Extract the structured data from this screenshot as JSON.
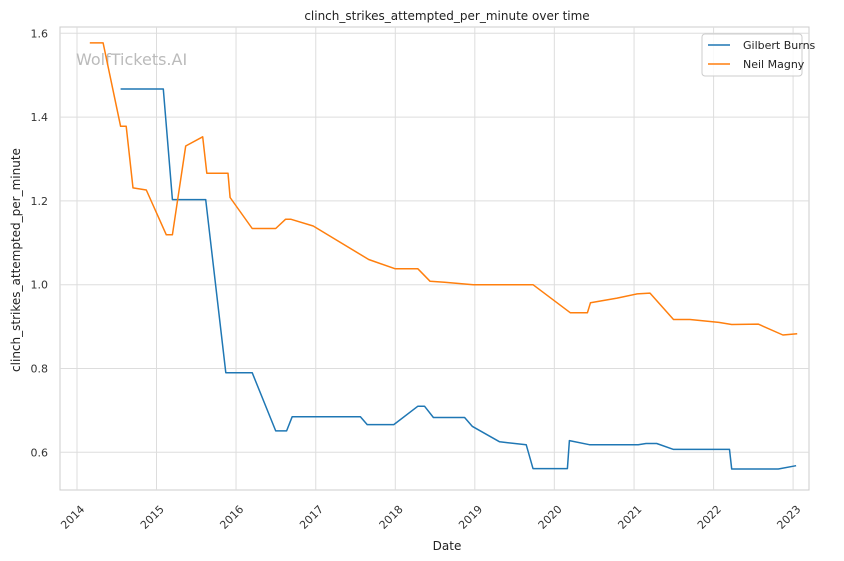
{
  "chart_data": {
    "type": "line",
    "title": "clinch_strikes_attempted_per_minute over time",
    "xlabel": "Date",
    "ylabel": "clinch_strikes_attempted_per_minute",
    "watermark": "WolfTickets.AI",
    "x_ticks": [
      "2014",
      "2015",
      "2016",
      "2017",
      "2018",
      "2019",
      "2020",
      "2021",
      "2022",
      "2023"
    ],
    "y_ticks": [
      "0.6",
      "0.8",
      "1.0",
      "1.2",
      "1.4",
      "1.6"
    ],
    "xlim": [
      "2013-10-15",
      "2023-03-15"
    ],
    "ylim": [
      0.51,
      1.615
    ],
    "grid": true,
    "legend_position": "top-right",
    "series": [
      {
        "name": "Gilbert Burns",
        "color": "#1f77b4",
        "points": [
          [
            "2014-07-20",
            1.467
          ],
          [
            "2015-02-01",
            1.467
          ],
          [
            "2015-03-15",
            1.203
          ],
          [
            "2015-08-15",
            1.203
          ],
          [
            "2015-11-15",
            0.79
          ],
          [
            "2016-03-15",
            0.79
          ],
          [
            "2016-07-01",
            0.651
          ],
          [
            "2016-08-20",
            0.651
          ],
          [
            "2016-09-15",
            0.685
          ],
          [
            "2017-07-25",
            0.685
          ],
          [
            "2017-08-25",
            0.666
          ],
          [
            "2017-12-25",
            0.666
          ],
          [
            "2018-04-15",
            0.71
          ],
          [
            "2018-05-15",
            0.71
          ],
          [
            "2018-06-25",
            0.683
          ],
          [
            "2018-11-15",
            0.683
          ],
          [
            "2018-12-20",
            0.662
          ],
          [
            "2019-04-25",
            0.625
          ],
          [
            "2019-08-25",
            0.618
          ],
          [
            "2019-09-25",
            0.561
          ],
          [
            "2020-03-01",
            0.561
          ],
          [
            "2020-03-10",
            0.628
          ],
          [
            "2020-06-10",
            0.618
          ],
          [
            "2021-01-20",
            0.618
          ],
          [
            "2021-02-25",
            0.621
          ],
          [
            "2021-04-15",
            0.621
          ],
          [
            "2021-07-01",
            0.607
          ],
          [
            "2022-03-15",
            0.607
          ],
          [
            "2022-03-25",
            0.56
          ],
          [
            "2022-10-25",
            0.56
          ],
          [
            "2023-01-15",
            0.568
          ]
        ]
      },
      {
        "name": "Neil Magny",
        "color": "#ff7f0e",
        "points": [
          [
            "2014-03-01",
            1.577
          ],
          [
            "2014-05-01",
            1.577
          ],
          [
            "2014-07-20",
            1.378
          ],
          [
            "2014-08-15",
            1.378
          ],
          [
            "2014-09-15",
            1.231
          ],
          [
            "2014-11-15",
            1.226
          ],
          [
            "2015-02-15",
            1.119
          ],
          [
            "2015-03-15",
            1.119
          ],
          [
            "2015-05-15",
            1.331
          ],
          [
            "2015-08-01",
            1.353
          ],
          [
            "2015-08-20",
            1.266
          ],
          [
            "2015-11-25",
            1.266
          ],
          [
            "2015-12-05",
            1.208
          ],
          [
            "2016-03-15",
            1.134
          ],
          [
            "2016-07-01",
            1.134
          ],
          [
            "2016-08-15",
            1.156
          ],
          [
            "2016-09-10",
            1.156
          ],
          [
            "2016-12-20",
            1.14
          ],
          [
            "2017-09-01",
            1.06
          ],
          [
            "2018-01-01",
            1.038
          ],
          [
            "2018-04-15",
            1.038
          ],
          [
            "2018-06-10",
            1.008
          ],
          [
            "2018-08-15",
            1.006
          ],
          [
            "2018-12-25",
            1.0
          ],
          [
            "2019-09-25",
            1.0
          ],
          [
            "2020-03-15",
            0.933
          ],
          [
            "2020-06-01",
            0.933
          ],
          [
            "2020-06-15",
            0.957
          ],
          [
            "2020-10-15",
            0.968
          ],
          [
            "2021-01-15",
            0.978
          ],
          [
            "2021-03-15",
            0.98
          ],
          [
            "2021-07-01",
            0.917
          ],
          [
            "2021-09-15",
            0.917
          ],
          [
            "2022-01-25",
            0.91
          ],
          [
            "2022-03-25",
            0.905
          ],
          [
            "2022-07-25",
            0.906
          ],
          [
            "2022-11-15",
            0.88
          ],
          [
            "2023-01-20",
            0.883
          ]
        ]
      }
    ]
  }
}
